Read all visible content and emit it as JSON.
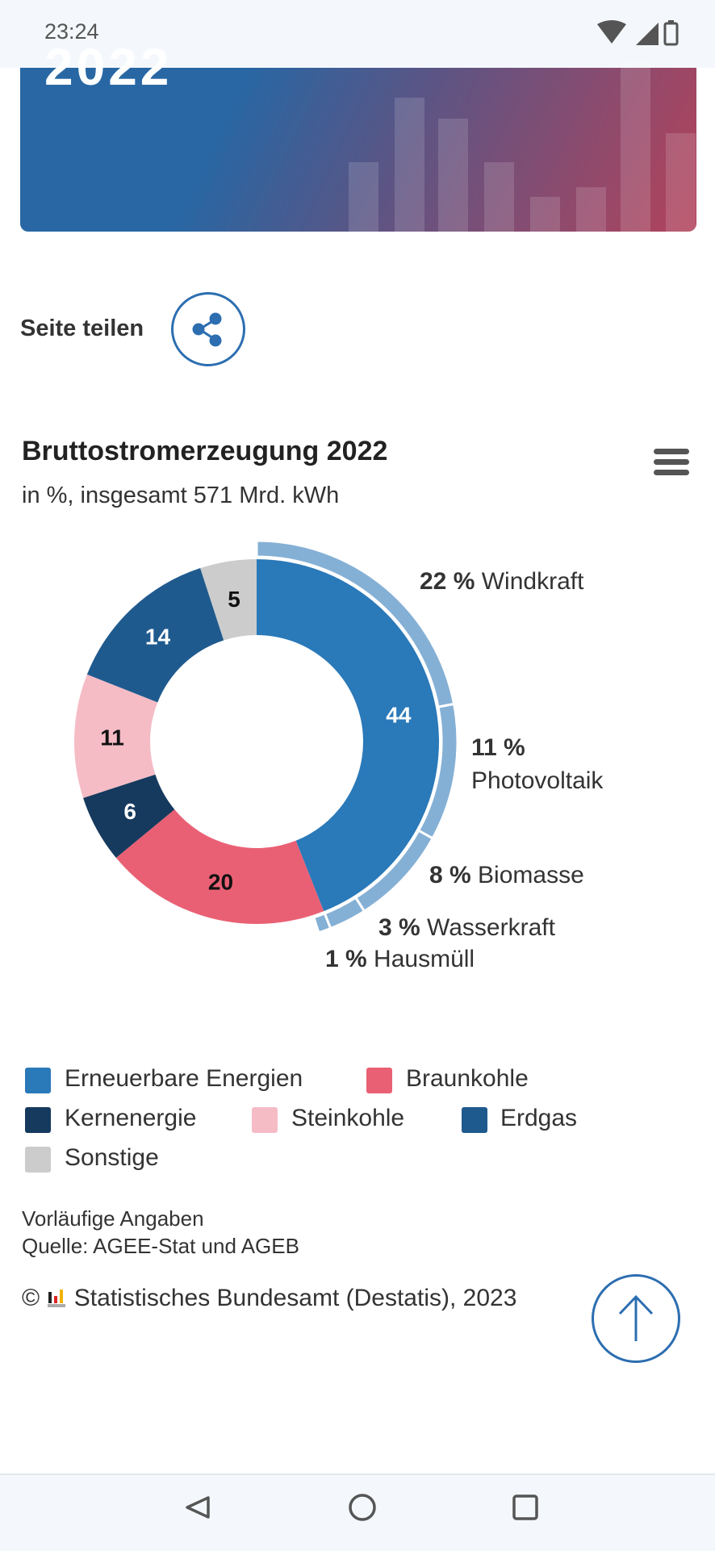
{
  "status_bar": {
    "time": "23:24",
    "icons": [
      "wifi-icon",
      "signal-icon",
      "battery-icon"
    ]
  },
  "banner": {
    "year_partial": "2022"
  },
  "share": {
    "label": "Seite teilen"
  },
  "chart_data": {
    "type": "pie",
    "subtype": "donut",
    "title": "Bruttostromerzeugung 2022",
    "subtitle": "in %, insgesamt 571 Mrd. kWh",
    "categories": [
      "Erneuerbare Energien",
      "Braunkohle",
      "Kernenergie",
      "Steinkohle",
      "Erdgas",
      "Sonstige"
    ],
    "values": [
      44,
      20,
      6,
      11,
      14,
      5
    ],
    "colors": [
      "#2a79b9",
      "#e96074",
      "#163a5e",
      "#f5bcc6",
      "#1f5a8e",
      "#cccccc"
    ],
    "label_colors": [
      "#ffffff",
      "#111111",
      "#ffffff",
      "#111111",
      "#ffffff",
      "#111111"
    ],
    "breakdown": {
      "parent": "Erneuerbare Energien",
      "color": "#85b0d5",
      "items": [
        {
          "name": "Windkraft",
          "value": 22,
          "label_value": "22 %"
        },
        {
          "name": "Photovoltaik",
          "value": 11,
          "label_value": "11 %"
        },
        {
          "name": "Biomasse",
          "value": 8,
          "label_value": "8 %"
        },
        {
          "name": "Wasserkraft",
          "value": 3,
          "label_value": "3 %"
        },
        {
          "name": "Hausmüll",
          "value": 1,
          "label_value": "1 %"
        }
      ]
    },
    "legend_position": "bottom",
    "notes": [
      "Vorläufige Angaben",
      "Quelle: AGEE-Stat und AGEB"
    ],
    "credit": "Statistisches Bundesamt (Destatis), 2023"
  },
  "copyright_symbol": "©",
  "accent_color": "#2c6eb0"
}
